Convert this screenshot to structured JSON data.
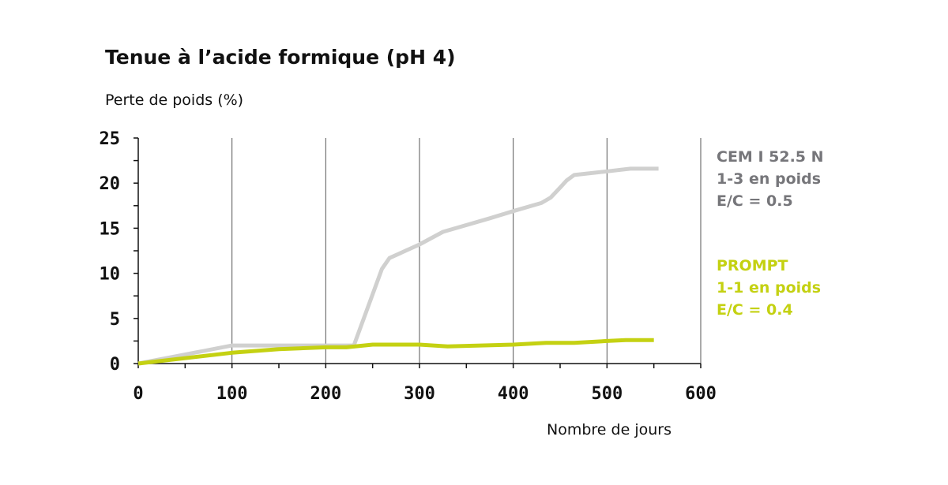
{
  "chart_data": {
    "type": "line",
    "title": "Tenue à l’acide formique (pH 4)",
    "ylabel": "Perte de poids (%)",
    "xlabel": "Nombre de jours",
    "xlim": [
      0,
      600
    ],
    "ylim": [
      0,
      25
    ],
    "x_ticks": [
      0,
      100,
      200,
      300,
      400,
      500,
      600
    ],
    "y_ticks": [
      0,
      5,
      10,
      15,
      20,
      25
    ],
    "grid": "vertical",
    "legend_position": "right",
    "series": [
      {
        "legend_lines": [
          "CEM I 52.5 N",
          "1-3 en poids",
          "E/C = 0.5"
        ],
        "color": "#d0d0cf",
        "points": [
          [
            0,
            0
          ],
          [
            100,
            2
          ],
          [
            200,
            2
          ],
          [
            230,
            2
          ],
          [
            260,
            10.5
          ],
          [
            268,
            11.7
          ],
          [
            300,
            13.2
          ],
          [
            325,
            14.6
          ],
          [
            375,
            16.1
          ],
          [
            400,
            16.9
          ],
          [
            430,
            17.8
          ],
          [
            440,
            18.4
          ],
          [
            450,
            19.5
          ],
          [
            457,
            20.3
          ],
          [
            465,
            20.9
          ],
          [
            500,
            21.3
          ],
          [
            525,
            21.6
          ],
          [
            555,
            21.6
          ]
        ]
      },
      {
        "legend_lines": [
          "PROMPT",
          "1-1 en poids",
          "E/C = 0.4"
        ],
        "color": "#c4d112",
        "points": [
          [
            0,
            0
          ],
          [
            100,
            1.2
          ],
          [
            150,
            1.6
          ],
          [
            200,
            1.8
          ],
          [
            222,
            1.8
          ],
          [
            250,
            2.1
          ],
          [
            300,
            2.1
          ],
          [
            330,
            1.9
          ],
          [
            400,
            2.1
          ],
          [
            435,
            2.3
          ],
          [
            465,
            2.3
          ],
          [
            500,
            2.5
          ],
          [
            520,
            2.6
          ],
          [
            550,
            2.6
          ]
        ]
      }
    ]
  }
}
